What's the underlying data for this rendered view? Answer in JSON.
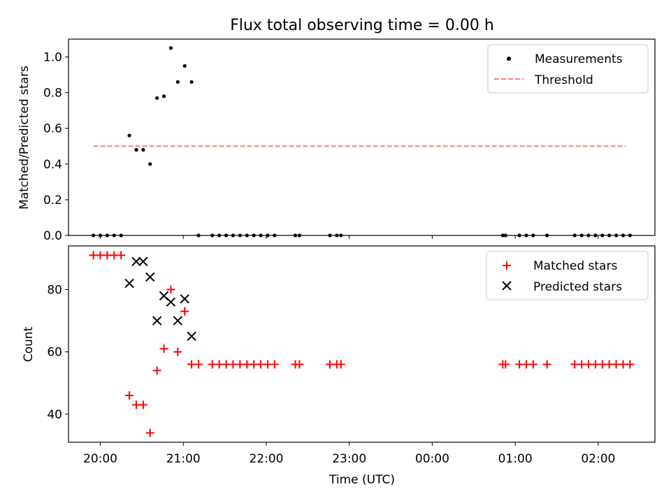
{
  "title": "Flux total observing time = 0.00 h",
  "xlabel": "Time (UTC)",
  "xtick_labels": [
    "20:00",
    "21:00",
    "22:00",
    "23:00",
    "00:00",
    "01:00",
    "02:00"
  ],
  "colors": {
    "measurement": "#000000",
    "threshold": "#ff7f7f",
    "matched": "#ff0000",
    "predicted": "#000000"
  },
  "chart_data": [
    {
      "type": "scatter",
      "ylabel": "Matched/Predicted stars",
      "ylim": [
        0,
        1.1
      ],
      "yticks": [
        "0.0",
        "0.2",
        "0.4",
        "0.6",
        "0.8",
        "1.0"
      ],
      "xlim": [
        "19:37",
        "02:41"
      ],
      "legend_position": "top-right",
      "legend": [
        "Measurements",
        "Threshold"
      ],
      "series": [
        {
          "name": "Measurements",
          "marker": "dot",
          "points": [
            [
              "19:55",
              0
            ],
            [
              "20:00",
              0
            ],
            [
              "20:05",
              0
            ],
            [
              "20:10",
              0
            ],
            [
              "20:15",
              0
            ],
            [
              "20:21",
              0.56
            ],
            [
              "20:26",
              0.48
            ],
            [
              "20:31",
              0.48
            ],
            [
              "20:36",
              0.4
            ],
            [
              "20:41",
              0.77
            ],
            [
              "20:46",
              0.78
            ],
            [
              "20:51",
              1.05
            ],
            [
              "20:56",
              0.86
            ],
            [
              "21:01",
              0.95
            ],
            [
              "21:06",
              0.86
            ],
            [
              "21:11",
              0
            ],
            [
              "21:21",
              0
            ],
            [
              "21:26",
              0
            ],
            [
              "21:31",
              0
            ],
            [
              "21:36",
              0
            ],
            [
              "21:41",
              0
            ],
            [
              "21:46",
              0
            ],
            [
              "21:51",
              0
            ],
            [
              "21:56",
              0
            ],
            [
              "22:01",
              0
            ],
            [
              "22:06",
              0
            ],
            [
              "22:21",
              0
            ],
            [
              "22:24",
              0
            ],
            [
              "22:46",
              0
            ],
            [
              "22:51",
              0
            ],
            [
              "22:54",
              0
            ],
            [
              "00:51",
              0
            ],
            [
              "00:53",
              0
            ],
            [
              "01:03",
              0
            ],
            [
              "01:08",
              0
            ],
            [
              "01:13",
              0
            ],
            [
              "01:23",
              0
            ],
            [
              "01:43",
              0
            ],
            [
              "01:48",
              0
            ],
            [
              "01:53",
              0
            ],
            [
              "01:58",
              0
            ],
            [
              "02:03",
              0
            ],
            [
              "02:08",
              0
            ],
            [
              "02:13",
              0
            ],
            [
              "02:18",
              0
            ],
            [
              "02:23",
              0
            ]
          ]
        },
        {
          "name": "Threshold",
          "marker": "dashed-line",
          "points": [
            [
              "19:55",
              0.5
            ],
            [
              "02:20",
              0.5
            ]
          ]
        }
      ]
    },
    {
      "type": "scatter",
      "ylabel": "Count",
      "ylim": [
        31,
        94
      ],
      "yticks": [
        "40",
        "60",
        "80"
      ],
      "xlim": [
        "19:37",
        "02:41"
      ],
      "legend_position": "top-right",
      "legend": [
        "Matched stars",
        "Predicted stars"
      ],
      "series": [
        {
          "name": "Matched stars",
          "marker": "plus",
          "points": [
            [
              "19:55",
              91
            ],
            [
              "20:00",
              91
            ],
            [
              "20:05",
              91
            ],
            [
              "20:10",
              91
            ],
            [
              "20:15",
              91
            ],
            [
              "20:21",
              46
            ],
            [
              "20:26",
              43
            ],
            [
              "20:31",
              43
            ],
            [
              "20:36",
              34
            ],
            [
              "20:41",
              54
            ],
            [
              "20:46",
              61
            ],
            [
              "20:51",
              80
            ],
            [
              "20:56",
              60
            ],
            [
              "21:01",
              73
            ],
            [
              "21:06",
              56
            ],
            [
              "21:11",
              56
            ],
            [
              "21:21",
              56
            ],
            [
              "21:26",
              56
            ],
            [
              "21:31",
              56
            ],
            [
              "21:36",
              56
            ],
            [
              "21:41",
              56
            ],
            [
              "21:46",
              56
            ],
            [
              "21:51",
              56
            ],
            [
              "21:56",
              56
            ],
            [
              "22:01",
              56
            ],
            [
              "22:06",
              56
            ],
            [
              "22:21",
              56
            ],
            [
              "22:24",
              56
            ],
            [
              "22:46",
              56
            ],
            [
              "22:51",
              56
            ],
            [
              "22:54",
              56
            ],
            [
              "00:51",
              56
            ],
            [
              "00:53",
              56
            ],
            [
              "01:03",
              56
            ],
            [
              "01:08",
              56
            ],
            [
              "01:13",
              56
            ],
            [
              "01:23",
              56
            ],
            [
              "01:43",
              56
            ],
            [
              "01:48",
              56
            ],
            [
              "01:53",
              56
            ],
            [
              "01:58",
              56
            ],
            [
              "02:03",
              56
            ],
            [
              "02:08",
              56
            ],
            [
              "02:13",
              56
            ],
            [
              "02:18",
              56
            ],
            [
              "02:23",
              56
            ]
          ]
        },
        {
          "name": "Predicted stars",
          "marker": "x",
          "points": [
            [
              "20:21",
              82
            ],
            [
              "20:26",
              89
            ],
            [
              "20:31",
              89
            ],
            [
              "20:36",
              84
            ],
            [
              "20:41",
              70
            ],
            [
              "20:46",
              78
            ],
            [
              "20:51",
              76
            ],
            [
              "20:56",
              70
            ],
            [
              "21:01",
              77
            ],
            [
              "21:06",
              65
            ]
          ]
        }
      ]
    }
  ]
}
